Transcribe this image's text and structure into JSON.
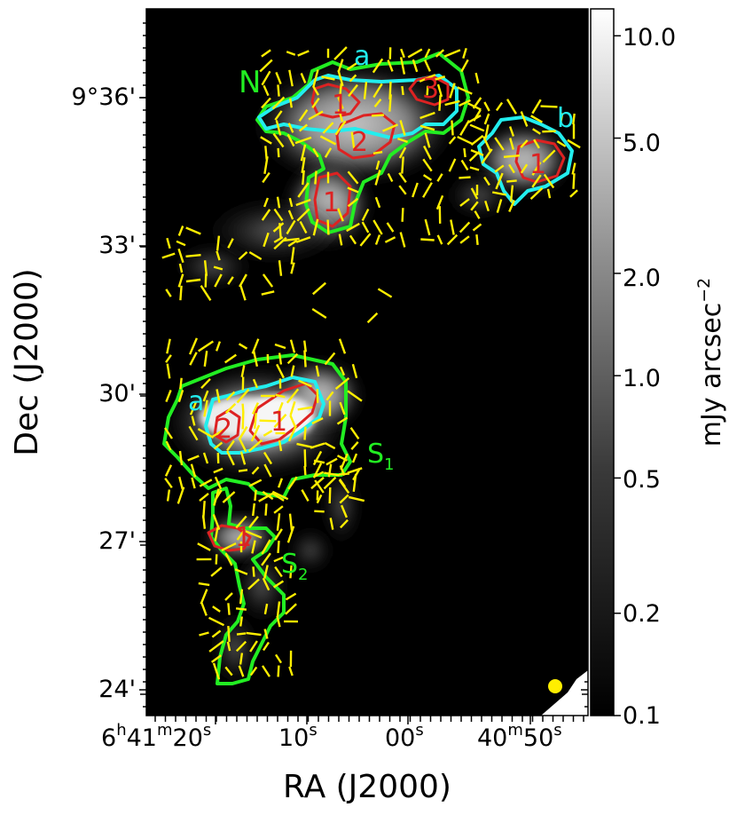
{
  "figure": {
    "xlabel": "RA (J2000)",
    "ylabel": "Dec (J2000)",
    "colorbar_label": "mJy arcsec",
    "colorbar_label_sup": "−2",
    "colorbar_scale": "log",
    "colorbar_range": [
      0.1,
      12
    ],
    "colorbar_ticks": [
      {
        "value": 10.0,
        "label": "10.0"
      },
      {
        "value": 5.0,
        "label": "5.0"
      },
      {
        "value": 2.0,
        "label": "2.0"
      },
      {
        "value": 1.0,
        "label": "1.0"
      },
      {
        "value": 0.5,
        "label": "0.5"
      },
      {
        "value": 0.2,
        "label": "0.2"
      },
      {
        "value": 0.1,
        "label": "0.1"
      }
    ],
    "x_ticks": [
      {
        "main": "6",
        "sup1": "h",
        "mid": "41",
        "sup2": "m",
        "end": "20",
        "sup3": "s"
      },
      {
        "main": "10",
        "sup1": "s"
      },
      {
        "main": "00",
        "sup1": "s"
      },
      {
        "main": "40",
        "sup1": "m",
        "mid": "50",
        "sup2": "s"
      }
    ],
    "y_ticks": [
      "9°36'",
      "33'",
      "30'",
      "27'",
      "24'"
    ],
    "region_labels": {
      "N": "N",
      "a_north": "a",
      "b_north": "b",
      "a_south": "a",
      "S1": "S",
      "S1_sub": "1",
      "S2": "S",
      "S2_sub": "2"
    },
    "core_labels": {
      "n1": "1",
      "n2": "2",
      "n3": "3",
      "n1b": "1",
      "nb1": "1",
      "s1_1": "1",
      "s1_2": "2",
      "s2_1": "1"
    },
    "colors": {
      "green_contour": "#22ee22",
      "cyan_contour": "#22eeee",
      "red_contour": "#dd2222",
      "vectors": "#ffee00",
      "beam": "#ffee00",
      "background": "#000000"
    }
  }
}
